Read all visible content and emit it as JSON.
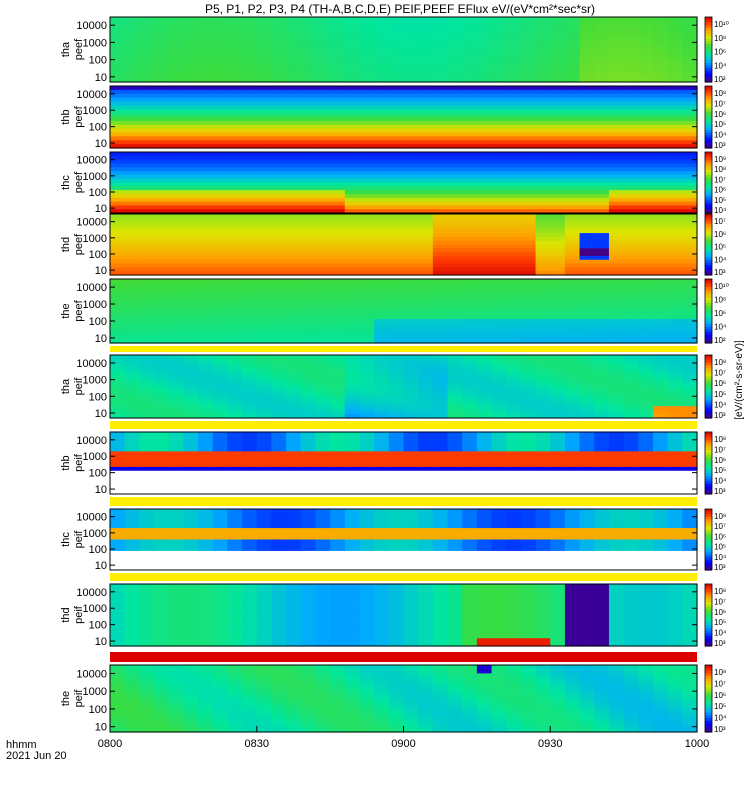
{
  "chart_data": {
    "type": "heatmap",
    "title": "P5, P1, P2, P3, P4 (TH-A,B,C,D,E) PEIF,PEEF EFlux eV/(eV*cm²*sec*sr)",
    "x_axis": {
      "range": [
        0,
        120
      ],
      "tick_labels": [
        "0800",
        "0830",
        "0900",
        "0930",
        "1000"
      ],
      "tick_minutes": [
        0,
        30,
        60,
        90,
        120
      ],
      "label_line1": "hhmm",
      "label_line2": "2021 Jun 20"
    },
    "panels": [
      {
        "probe": "tha",
        "species": "peef",
        "ylabel_top": "tha",
        "ylabel_bottom": "peef",
        "ytick_labels": [
          "10000",
          "1000",
          "100",
          "10"
        ],
        "cbar_labels": [
          "10¹⁰",
          "10⁸",
          "10⁶",
          "10⁴",
          "10²"
        ]
      },
      {
        "probe": "thb",
        "species": "peef",
        "ylabel_top": "thb",
        "ylabel_bottom": "peef",
        "ytick_labels": [
          "10000",
          "1000",
          "100",
          "10"
        ],
        "cbar_labels": [
          "10⁸",
          "10⁷",
          "10⁶",
          "10⁵",
          "10⁴",
          "10³"
        ]
      },
      {
        "probe": "thc",
        "species": "peef",
        "ylabel_top": "thc",
        "ylabel_bottom": "peef",
        "ytick_labels": [
          "10000",
          "1000",
          "100",
          "10"
        ],
        "cbar_labels": [
          "10⁹",
          "10⁸",
          "10⁷",
          "10⁶",
          "10⁵",
          "10⁴"
        ]
      },
      {
        "probe": "thd",
        "species": "peef",
        "ylabel_top": "thd",
        "ylabel_bottom": "peef",
        "ytick_labels": [
          "10000",
          "1000",
          "100",
          "10"
        ],
        "cbar_labels": [
          "10⁷",
          "10⁶",
          "10⁵",
          "10⁴",
          "10³"
        ]
      },
      {
        "probe": "the",
        "species": "peef",
        "ylabel_top": "the",
        "ylabel_bottom": "peef",
        "ytick_labels": [
          "10000",
          "1000",
          "100",
          "10"
        ],
        "cbar_labels": [
          "10¹⁰",
          "10⁸",
          "10⁶",
          "10⁴",
          "10²"
        ]
      },
      {
        "probe": "tha",
        "species": "peif",
        "ylabel_top": "tha",
        "ylabel_bottom": "peif",
        "ytick_labels": [
          "10000",
          "1000",
          "100",
          "10"
        ],
        "cbar_labels": [
          "10⁸",
          "10⁷",
          "10⁶",
          "10⁵",
          "10⁴",
          "10³"
        ]
      },
      {
        "probe": "thb",
        "species": "peif",
        "ylabel_top": "thb",
        "ylabel_bottom": "peif",
        "ytick_labels": [
          "10000",
          "1000",
          "100",
          "10"
        ],
        "cbar_labels": [
          "10⁸",
          "10⁷",
          "10⁶",
          "10⁵",
          "10⁴",
          "10³"
        ]
      },
      {
        "probe": "thc",
        "species": "peif",
        "ylabel_top": "thc",
        "ylabel_bottom": "peif",
        "ytick_labels": [
          "10000",
          "1000",
          "100",
          "10"
        ],
        "cbar_labels": [
          "10⁸",
          "10⁷",
          "10⁶",
          "10⁵",
          "10⁴",
          "10³"
        ]
      },
      {
        "probe": "thd",
        "species": "peif",
        "ylabel_top": "thd",
        "ylabel_bottom": "peif",
        "ytick_labels": [
          "10000",
          "1000",
          "100",
          "10"
        ],
        "cbar_labels": [
          "10⁸",
          "10⁷",
          "10⁶",
          "10⁵",
          "10⁴",
          "10³"
        ]
      },
      {
        "probe": "the",
        "species": "peif",
        "ylabel_top": "the",
        "ylabel_bottom": "peif",
        "ytick_labels": [
          "10000",
          "1000",
          "100",
          "10"
        ],
        "cbar_labels": [
          "10⁸",
          "10⁷",
          "10⁶",
          "10⁵",
          "10⁴",
          "10³"
        ]
      }
    ],
    "colorbar_unit": "[eV/(cm²-s-sr-eV)]"
  }
}
